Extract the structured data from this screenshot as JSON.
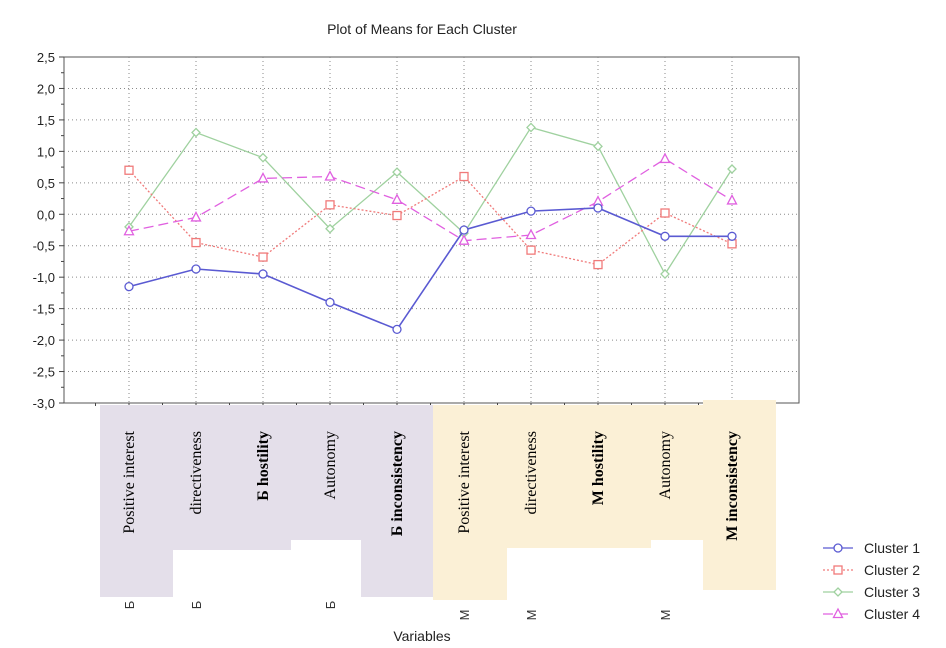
{
  "chart_data": {
    "type": "line",
    "title": "Plot of Means for Each Cluster",
    "xlabel": "Variables",
    "ylabel": "",
    "ylim": [
      -3.0,
      2.5
    ],
    "yticks": [
      "2,5",
      "2,0",
      "1,5",
      "1,0",
      "0,5",
      "0,0",
      "-0,5",
      "-1,0",
      "-1,5",
      "-2,0",
      "-2,5",
      "-3,0"
    ],
    "categories": [
      "Positive interest",
      "directiveness",
      "Б hostility",
      "Autonomy",
      "Б inconsistency",
      "Positive interest",
      "directiveness",
      "M hostility",
      "Autonomy",
      "M inconsistency"
    ],
    "category_prefixes": [
      "Б",
      "Б",
      "",
      "Б",
      "",
      "M",
      "M",
      "",
      "M",
      ""
    ],
    "category_bold": [
      false,
      false,
      true,
      false,
      true,
      false,
      false,
      true,
      false,
      true
    ],
    "category_groups": [
      "Б",
      "Б",
      "Б",
      "Б",
      "Б",
      "M",
      "M",
      "M",
      "M",
      "M"
    ],
    "group_colors": {
      "Б": "#e4dfea",
      "M": "#fbf0d6"
    },
    "grid": true,
    "legend_position": "bottom-right",
    "series": [
      {
        "name": "Cluster 1",
        "marker": "circle",
        "dash": "solid",
        "color": "#5a5ad2",
        "values": [
          -1.15,
          -0.87,
          -0.95,
          -1.4,
          -1.83,
          -0.25,
          0.05,
          0.1,
          -0.35,
          -0.35
        ]
      },
      {
        "name": "Cluster 2",
        "marker": "square",
        "dash": "dotted",
        "color": "#f07a7a",
        "values": [
          0.7,
          -0.45,
          -0.68,
          0.15,
          -0.02,
          0.6,
          -0.57,
          -0.8,
          0.02,
          -0.47
        ]
      },
      {
        "name": "Cluster 3",
        "marker": "diamond",
        "dash": "solid",
        "color": "#9fd19f",
        "values": [
          -0.2,
          1.3,
          0.9,
          -0.23,
          0.67,
          -0.3,
          1.38,
          1.08,
          -0.95,
          0.72
        ]
      },
      {
        "name": "Cluster 4",
        "marker": "triangle",
        "dash": "dashed",
        "color": "#e060e0",
        "values": [
          -0.27,
          -0.05,
          0.57,
          0.6,
          0.23,
          -0.42,
          -0.33,
          0.2,
          0.88,
          0.22
        ]
      }
    ]
  }
}
